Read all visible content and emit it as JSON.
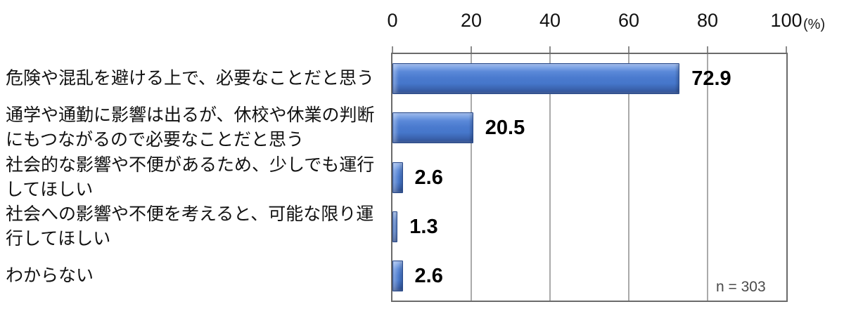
{
  "chart_data": {
    "type": "bar",
    "orientation": "horizontal",
    "title": "",
    "categories": [
      "危険や混乱を避ける上で、必要なことだと思う",
      "通学や通勤に影響は出るが、休校や休業の判断にもつながるので必要なことだと思う",
      "社会的な影響や不便があるため、少しでも運行してほしい",
      "社会への影響や不便を考えると、可能な限り運行してほしい",
      "わからない"
    ],
    "values": [
      72.9,
      20.5,
      2.6,
      1.3,
      2.6
    ],
    "value_labels": [
      "72.9",
      "20.5",
      "2.6",
      "1.3",
      "2.6"
    ],
    "x_ticks": [
      0,
      20,
      40,
      60,
      80,
      100
    ],
    "xlim": [
      0,
      100
    ],
    "unit_label": "(%)",
    "sample_size_label": "n = 303",
    "grid": true,
    "legend": false,
    "colors": {
      "bar_fill": "#4a7ace",
      "bar_highlight": "#9cbaf0",
      "bar_shadow": "#2b4c8f",
      "bar_border": "#27488a",
      "plot_border": "#6a6a6a",
      "gridline": "#aaaaaa",
      "tick_mark": "#8c8c8c",
      "text": "#111111",
      "value_text": "#000000",
      "sample_text": "#4a4a4a"
    }
  }
}
